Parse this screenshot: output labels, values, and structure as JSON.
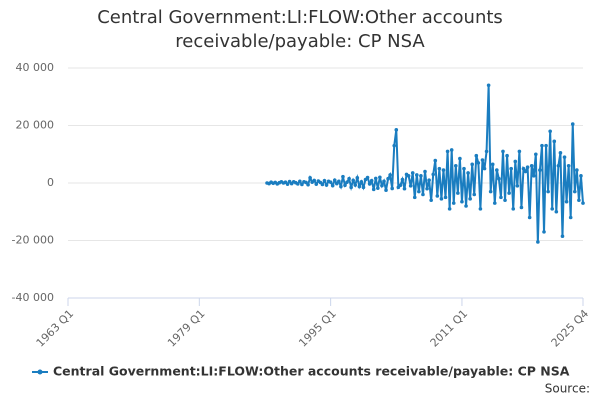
{
  "chart_data": {
    "type": "line",
    "title": "Central Government:LI:FLOW:Other accounts receivable/payable: CP NSA",
    "source": "Source:",
    "xlim": [
      "1963 Q1",
      "2025 Q4"
    ],
    "xticks": [
      "1963 Q1",
      "1979 Q1",
      "1995 Q1",
      "2011 Q1",
      "2025 Q4"
    ],
    "ylim": [
      -40000,
      40000
    ],
    "yticks": [
      {
        "value": -40000,
        "label": "-40 000"
      },
      {
        "value": -20000,
        "label": "-20 000"
      },
      0,
      {
        "value": 20000,
        "label": "20 000"
      },
      {
        "value": 40000,
        "label": "40 000"
      }
    ],
    "grid": true,
    "x": [
      "1987 Q2",
      "1987 Q3",
      "1987 Q4",
      "1988 Q1",
      "1988 Q2",
      "1988 Q3",
      "1988 Q4",
      "1989 Q1",
      "1989 Q2",
      "1989 Q3",
      "1989 Q4",
      "1990 Q1",
      "1990 Q2",
      "1990 Q3",
      "1990 Q4",
      "1991 Q1",
      "1991 Q2",
      "1991 Q3",
      "1991 Q4",
      "1992 Q1",
      "1992 Q2",
      "1992 Q3",
      "1992 Q4",
      "1993 Q1",
      "1993 Q2",
      "1993 Q3",
      "1993 Q4",
      "1994 Q1",
      "1994 Q2",
      "1994 Q3",
      "1994 Q4",
      "1995 Q1",
      "1995 Q2",
      "1995 Q3",
      "1995 Q4",
      "1996 Q1",
      "1996 Q2",
      "1996 Q3",
      "1996 Q4",
      "1997 Q1",
      "1997 Q2",
      "1997 Q3",
      "1997 Q4",
      "1998 Q1",
      "1998 Q2",
      "1998 Q3",
      "1998 Q4",
      "1999 Q1",
      "1999 Q2",
      "1999 Q3",
      "1999 Q4",
      "2000 Q1",
      "2000 Q2",
      "2000 Q3",
      "2000 Q4",
      "2001 Q1",
      "2001 Q2",
      "2001 Q3",
      "2001 Q4",
      "2002 Q1",
      "2002 Q2",
      "2002 Q3",
      "2002 Q4",
      "2003 Q1",
      "2003 Q2",
      "2003 Q3",
      "2003 Q4",
      "2004 Q1",
      "2004 Q2",
      "2004 Q3",
      "2004 Q4",
      "2005 Q1",
      "2005 Q2",
      "2005 Q3",
      "2005 Q4",
      "2006 Q1",
      "2006 Q2",
      "2006 Q3",
      "2006 Q4",
      "2007 Q1",
      "2007 Q2",
      "2007 Q3",
      "2007 Q4",
      "2008 Q1",
      "2008 Q2",
      "2008 Q3",
      "2008 Q4",
      "2009 Q1",
      "2009 Q2",
      "2009 Q3",
      "2009 Q4",
      "2010 Q1",
      "2010 Q2",
      "2010 Q3",
      "2010 Q4",
      "2011 Q1",
      "2011 Q2",
      "2011 Q3",
      "2011 Q4",
      "2012 Q1",
      "2012 Q2",
      "2012 Q3",
      "2012 Q4",
      "2013 Q1",
      "2013 Q2",
      "2013 Q3",
      "2013 Q4",
      "2014 Q1",
      "2014 Q2",
      "2014 Q3",
      "2014 Q4",
      "2015 Q1",
      "2015 Q2",
      "2015 Q3",
      "2015 Q4",
      "2016 Q1",
      "2016 Q2",
      "2016 Q3",
      "2016 Q4",
      "2017 Q1",
      "2017 Q2",
      "2017 Q3",
      "2017 Q4",
      "2018 Q1",
      "2018 Q2",
      "2018 Q3",
      "2018 Q4",
      "2019 Q1",
      "2019 Q2",
      "2019 Q3",
      "2019 Q4",
      "2020 Q1",
      "2020 Q2",
      "2020 Q3",
      "2020 Q4",
      "2021 Q1",
      "2021 Q2",
      "2021 Q3",
      "2021 Q4",
      "2022 Q1",
      "2022 Q2",
      "2022 Q3",
      "2022 Q4",
      "2023 Q1",
      "2023 Q2",
      "2023 Q3",
      "2023 Q4",
      "2024 Q1",
      "2024 Q2",
      "2024 Q3",
      "2024 Q4",
      "2025 Q1",
      "2025 Q2",
      "2025 Q3",
      "2025 Q4"
    ],
    "series": [
      {
        "name": "Central Government:LI:FLOW:Other accounts receivable/payable: CP NSA",
        "color": "#1a7dc0",
        "values": [
          0,
          -200,
          300,
          -100,
          200,
          -300,
          100,
          400,
          0,
          300,
          -400,
          500,
          -200,
          400,
          100,
          -300,
          600,
          -500,
          400,
          200,
          -600,
          1800,
          300,
          900,
          -400,
          700,
          200,
          -500,
          800,
          -700,
          600,
          300,
          -900,
          1000,
          -200,
          600,
          -1200,
          2200,
          -800,
          300,
          1500,
          -1500,
          900,
          -700,
          1800,
          -1200,
          400,
          -1500,
          1200,
          1900,
          -300,
          800,
          -2200,
          1600,
          -1800,
          2000,
          -900,
          600,
          -2500,
          1500,
          2800,
          -1900,
          13000,
          18500,
          -1500,
          -800,
          1200,
          -2000,
          3000,
          2500,
          -1000,
          3500,
          -5000,
          2800,
          -3000,
          2500,
          -4000,
          4000,
          -2000,
          1000,
          -6000,
          3000,
          7800,
          -4500,
          5000,
          -5500,
          4500,
          -5000,
          11000,
          -9000,
          11500,
          -7000,
          6000,
          -3500,
          8500,
          -6500,
          5000,
          -8000,
          3500,
          -5500,
          6500,
          -4000,
          9500,
          7000,
          -9000,
          8000,
          5000,
          11000,
          34000,
          -3000,
          6500,
          -7000,
          4500,
          1500,
          -5000,
          11000,
          -6000,
          9500,
          -3500,
          5000,
          -9000,
          7500,
          -1000,
          11000,
          -8500,
          5000,
          4000,
          5500,
          -12000,
          6000,
          2500,
          10000,
          -20500,
          4500,
          13000,
          -17000,
          13000,
          -3000,
          18000,
          -9000,
          14500,
          -10000,
          6000,
          10500,
          -18500,
          9000,
          -6500,
          6000,
          -12000,
          20500,
          -3000,
          4500,
          -6000,
          2500,
          -7000
        ]
      }
    ]
  }
}
